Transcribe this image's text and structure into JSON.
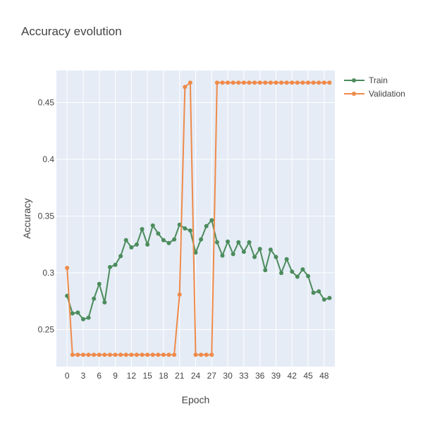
{
  "chart_data": {
    "type": "line",
    "title": "Accuracy evolution",
    "xlabel": "Epoch",
    "ylabel": "Accuracy",
    "xlim": [
      -2,
      50
    ],
    "ylim": [
      0.2173,
      0.4783
    ],
    "x_ticks": [
      0,
      3,
      6,
      9,
      12,
      15,
      18,
      21,
      24,
      27,
      30,
      33,
      36,
      39,
      42,
      45,
      48
    ],
    "y_ticks": [
      0.25,
      0.3,
      0.35,
      0.4,
      0.45
    ],
    "y_tick_labels": [
      "0.25",
      "0.3",
      "0.35",
      "0.4",
      "0.45"
    ],
    "grid": true,
    "legend_position": "top-right",
    "background": "#e5ecf6",
    "x": [
      0,
      1,
      2,
      3,
      4,
      5,
      6,
      7,
      8,
      9,
      10,
      11,
      12,
      13,
      14,
      15,
      16,
      17,
      18,
      19,
      20,
      21,
      22,
      23,
      24,
      25,
      26,
      27,
      28,
      29,
      30,
      31,
      32,
      33,
      34,
      35,
      36,
      37,
      38,
      39,
      40,
      41,
      42,
      43,
      44,
      45,
      46,
      47,
      48,
      49
    ],
    "series": [
      {
        "name": "Train",
        "color": "#4c8c5c",
        "values": [
          0.2797,
          0.2642,
          0.2649,
          0.2591,
          0.2604,
          0.2772,
          0.2902,
          0.2739,
          0.305,
          0.307,
          0.3147,
          0.3288,
          0.3224,
          0.3249,
          0.3385,
          0.3249,
          0.3417,
          0.3346,
          0.3288,
          0.3262,
          0.3294,
          0.3424,
          0.3391,
          0.3372,
          0.3178,
          0.3294,
          0.3411,
          0.3463,
          0.3269,
          0.3152,
          0.3275,
          0.3165,
          0.3269,
          0.3185,
          0.3269,
          0.3139,
          0.321,
          0.3023,
          0.3204,
          0.3139,
          0.2998,
          0.312,
          0.301,
          0.2965,
          0.303,
          0.2971,
          0.2824,
          0.2836,
          0.2764,
          0.2778
        ]
      },
      {
        "name": "Validation",
        "color": "#ef8a49",
        "values": [
          0.3043,
          0.2277,
          0.2277,
          0.2277,
          0.2277,
          0.2277,
          0.2277,
          0.2277,
          0.2277,
          0.2277,
          0.2277,
          0.2277,
          0.2277,
          0.2277,
          0.2277,
          0.2277,
          0.2277,
          0.2277,
          0.2277,
          0.2277,
          0.2277,
          0.2808,
          0.4638,
          0.4676,
          0.2277,
          0.2277,
          0.2277,
          0.2277,
          0.4676,
          0.4676,
          0.4676,
          0.4676,
          0.4676,
          0.4676,
          0.4676,
          0.4676,
          0.4676,
          0.4676,
          0.4676,
          0.4676,
          0.4676,
          0.4676,
          0.4676,
          0.4676,
          0.4676,
          0.4676,
          0.4676,
          0.4676,
          0.4676,
          0.4676
        ]
      }
    ]
  }
}
